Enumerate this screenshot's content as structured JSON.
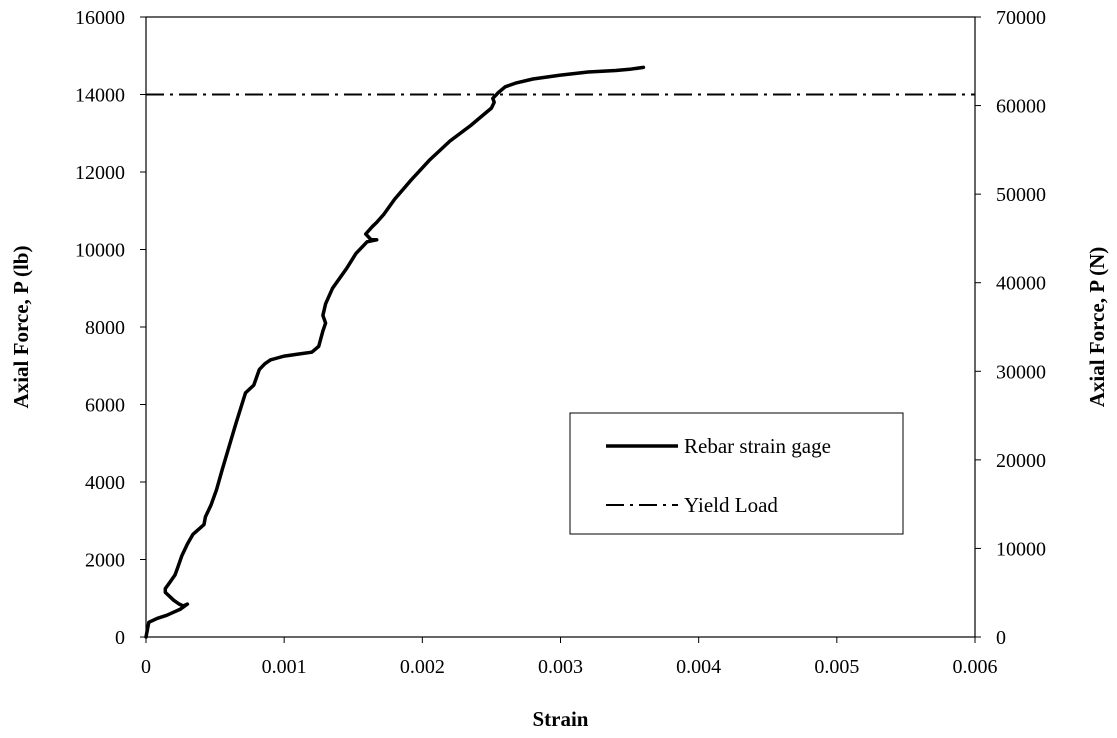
{
  "chart_data": {
    "type": "line",
    "title": "",
    "xlabel": "Strain",
    "ylabel": "Axial Force, P (lb)",
    "y2label": "Axial Force, P (N)",
    "xlim": [
      0,
      0.006
    ],
    "ylim": [
      0,
      16000
    ],
    "y2lim": [
      0,
      70000
    ],
    "xticks": [
      0,
      0.001,
      0.002,
      0.003,
      0.004,
      0.005,
      0.006
    ],
    "xtick_labels": [
      "0",
      "0.001",
      "0.002",
      "0.003",
      "0.004",
      "0.005",
      "0.006"
    ],
    "yticks": [
      0,
      2000,
      4000,
      6000,
      8000,
      10000,
      12000,
      14000,
      16000
    ],
    "ytick_labels": [
      "0",
      "2000",
      "4000",
      "6000",
      "8000",
      "10000",
      "12000",
      "14000",
      "16000"
    ],
    "y2ticks": [
      0,
      10000,
      20000,
      30000,
      40000,
      50000,
      60000,
      70000
    ],
    "y2tick_labels": [
      "0",
      "10000",
      "20000",
      "30000",
      "40000",
      "50000",
      "60000",
      "70000"
    ],
    "grid": false,
    "legend_position": "center-right",
    "series": [
      {
        "name": "Rebar strain gage",
        "style": "solid",
        "color": "#000000",
        "x": [
          0,
          2e-05,
          8e-05,
          0.00015,
          0.0002,
          0.00025,
          0.0003,
          0.00027,
          0.00024,
          0.0002,
          0.00017,
          0.00014,
          0.00014,
          0.00017,
          0.00021,
          0.00023,
          0.00026,
          0.0003,
          0.00034,
          0.00042,
          0.00043,
          0.00047,
          0.00051,
          0.00055,
          0.0006,
          0.00065,
          0.00072,
          0.00078,
          0.00082,
          0.00086,
          0.0009,
          0.00095,
          0.001,
          0.0011,
          0.0012,
          0.00125,
          0.00128,
          0.0013,
          0.00128,
          0.0013,
          0.00135,
          0.00145,
          0.00152,
          0.0016,
          0.00167,
          0.00163,
          0.00159,
          0.00164,
          0.00167,
          0.00172,
          0.0018,
          0.00192,
          0.00205,
          0.0022,
          0.00235,
          0.00245,
          0.0025,
          0.00252,
          0.00251,
          0.00255,
          0.0026,
          0.00268,
          0.0028,
          0.003,
          0.0032,
          0.0034,
          0.0035,
          0.0036
        ],
        "y": [
          0,
          380,
          480,
          560,
          640,
          720,
          850,
          800,
          850,
          950,
          1050,
          1150,
          1250,
          1400,
          1600,
          1800,
          2100,
          2400,
          2650,
          2900,
          3100,
          3400,
          3800,
          4300,
          4900,
          5500,
          6300,
          6500,
          6900,
          7050,
          7150,
          7200,
          7250,
          7300,
          7350,
          7500,
          7900,
          8100,
          8300,
          8600,
          9000,
          9500,
          9900,
          10200,
          10250,
          10250,
          10400,
          10600,
          10700,
          10900,
          11300,
          11800,
          12300,
          12800,
          13200,
          13500,
          13650,
          13800,
          13900,
          14050,
          14200,
          14300,
          14400,
          14500,
          14580,
          14620,
          14650,
          14700
        ]
      },
      {
        "name": "Yield Load",
        "style": "dash-dot",
        "color": "#000000",
        "x": [
          0,
          0.006
        ],
        "y": [
          14000,
          14000
        ]
      }
    ]
  }
}
